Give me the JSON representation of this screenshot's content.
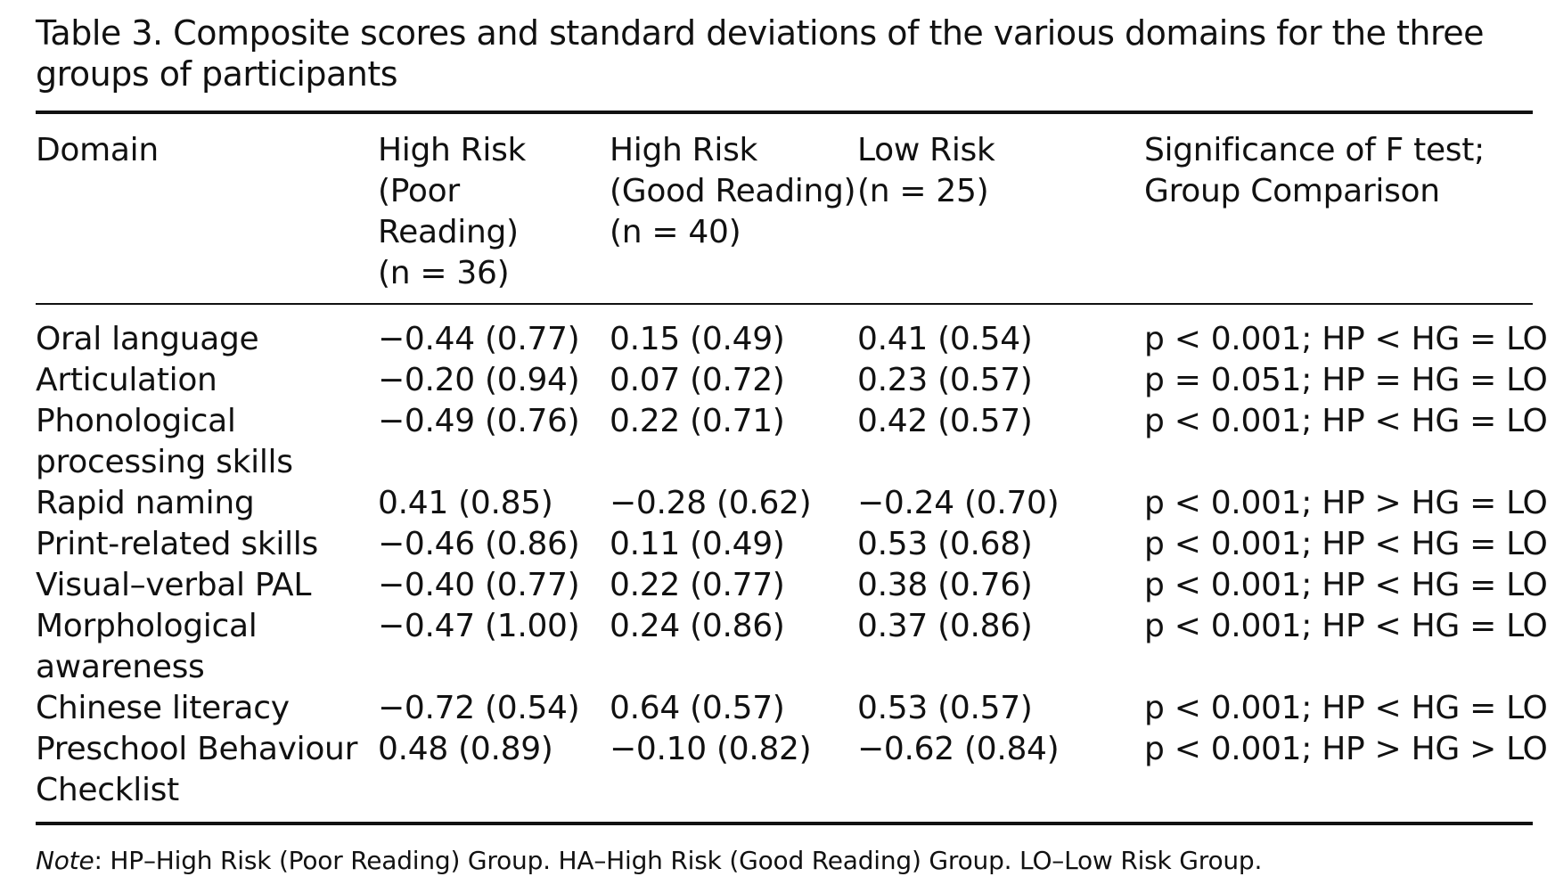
{
  "caption": "Table 3.  Composite scores and standard deviations of the various domains for the three groups of participants",
  "headers": {
    "domain": "Domain",
    "hp": [
      "High Risk",
      "(Poor Reading)",
      "(n = 36)"
    ],
    "hg": [
      "High Risk",
      "(Good Reading)",
      "(n = 40)"
    ],
    "lo": [
      "Low Risk",
      "(n = 25)"
    ],
    "sig": [
      "Significance of F test;",
      "Group Comparison"
    ]
  },
  "rows": [
    {
      "domain": [
        "Oral language"
      ],
      "hp": "−0.44 (0.77)",
      "hg": "0.15 (0.49)",
      "lo": "0.41 (0.54)",
      "sig": "p < 0.001; HP < HG = LO"
    },
    {
      "domain": [
        "Articulation"
      ],
      "hp": "−0.20 (0.94)",
      "hg": "0.07 (0.72)",
      "lo": "0.23 (0.57)",
      "sig": "p = 0.051; HP = HG = LO"
    },
    {
      "domain": [
        "Phonological",
        "processing skills"
      ],
      "hp": "−0.49 (0.76)",
      "hg": "0.22 (0.71)",
      "lo": "0.42 (0.57)",
      "sig": "p < 0.001; HP < HG = LO"
    },
    {
      "domain": [
        "Rapid naming"
      ],
      "hp": "0.41 (0.85)",
      "hg": "−0.28 (0.62)",
      "lo": "−0.24 (0.70)",
      "sig": "p < 0.001; HP > HG = LO"
    },
    {
      "domain": [
        "Print-related skills"
      ],
      "hp": "−0.46 (0.86)",
      "hg": "0.11 (0.49)",
      "lo": "0.53 (0.68)",
      "sig": "p < 0.001; HP < HG = LO"
    },
    {
      "domain": [
        "Visual–verbal PAL"
      ],
      "hp": "−0.40 (0.77)",
      "hg": "0.22 (0.77)",
      "lo": "0.38 (0.76)",
      "sig": "p < 0.001; HP < HG = LO"
    },
    {
      "domain": [
        "Morphological",
        "awareness"
      ],
      "hp": "−0.47 (1.00)",
      "hg": "0.24 (0.86)",
      "lo": "0.37 (0.86)",
      "sig": "p < 0.001; HP < HG = LO"
    },
    {
      "domain": [
        "Chinese literacy"
      ],
      "hp": "−0.72 (0.54)",
      "hg": "0.64 (0.57)",
      "lo": "0.53 (0.57)",
      "sig": "p < 0.001; HP < HG = LO"
    },
    {
      "domain": [
        "Preschool Behaviour",
        "Checklist"
      ],
      "hp": "0.48 (0.89)",
      "hg": "−0.10 (0.82)",
      "lo": "−0.62 (0.84)",
      "sig": "p < 0.001; HP > HG > LO"
    }
  ],
  "note": {
    "label": "Note",
    "text": ": HP–High Risk (Poor Reading) Group. HA–High Risk (Good Reading) Group. LO–Low Risk Group."
  }
}
